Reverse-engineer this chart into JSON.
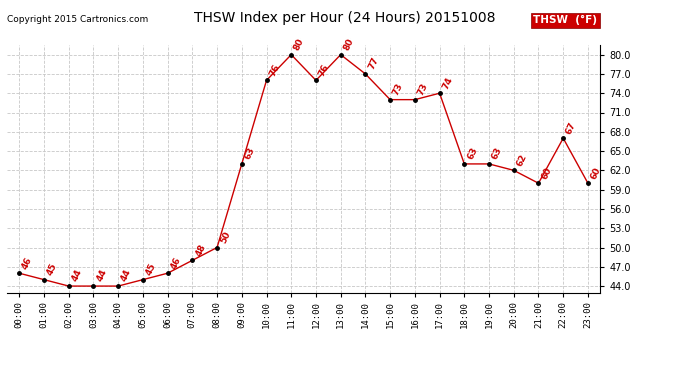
{
  "title": "THSW Index per Hour (24 Hours) 20151008",
  "copyright": "Copyright 2015 Cartronics.com",
  "legend_label": "THSW  (°F)",
  "hours_x": [
    0,
    1,
    2,
    3,
    4,
    5,
    6,
    7,
    8,
    9,
    10,
    11,
    12,
    13,
    14,
    15,
    16,
    17,
    18,
    19,
    20,
    21,
    22,
    23
  ],
  "vals": [
    46,
    45,
    44,
    44,
    44,
    45,
    46,
    48,
    50,
    63,
    76,
    80,
    76,
    80,
    77,
    73,
    73,
    74,
    63,
    63,
    62,
    60,
    67,
    60
  ],
  "ylim": [
    43.0,
    81.5
  ],
  "yticks": [
    44.0,
    47.0,
    50.0,
    53.0,
    56.0,
    59.0,
    62.0,
    65.0,
    68.0,
    71.0,
    74.0,
    77.0,
    80.0
  ],
  "bg_color": "#ffffff",
  "line_color": "#cc0000",
  "marker_color": "#000000",
  "label_color": "#cc0000",
  "grid_color": "#c8c8c8",
  "title_color": "#000000",
  "copyright_color": "#000000",
  "legend_bg": "#cc0000",
  "legend_text_color": "#ffffff",
  "figsize": [
    6.9,
    3.75
  ],
  "dpi": 100
}
